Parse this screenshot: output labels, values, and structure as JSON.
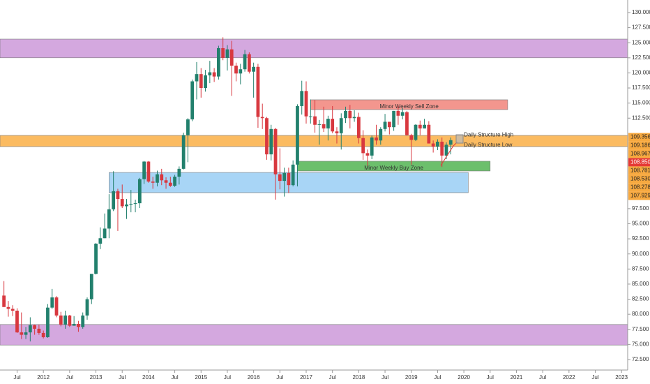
{
  "chart_data": {
    "type": "candlestick",
    "start_index": 0,
    "open": [
      83.1,
      81.2,
      80.9,
      80.6,
      77.0,
      76.6,
      77.0,
      78.2,
      77.6,
      76.9,
      76.2,
      81.1,
      82.8,
      79.8,
      78.3,
      79.8,
      78.1,
      78.4,
      77.9,
      79.8,
      82.5,
      86.7,
      91.7,
      92.6,
      94.2,
      97.4,
      100.4,
      99.1,
      97.9,
      98.2,
      98.3,
      98.4,
      102.4,
      105.3,
      102.0,
      101.8,
      103.2,
      102.2,
      101.8,
      101.3,
      102.8,
      104.1,
      109.7,
      112.3,
      118.6,
      119.8,
      117.5,
      119.6,
      120.1,
      119.4,
      124.1,
      122.5,
      123.9,
      121.2,
      119.9,
      120.6,
      123.1,
      120.2,
      121.0,
      112.7,
      112.5,
      106.5,
      110.7,
      103.2,
      102.1,
      103.4,
      101.4,
      104.8,
      114.5,
      117.0,
      112.8,
      112.8,
      111.4,
      111.5,
      110.8,
      112.4,
      110.3,
      110.0,
      112.5,
      113.7,
      112.5,
      112.7,
      109.2,
      106.7,
      106.3,
      109.3,
      108.8,
      110.7,
      111.9,
      111.0,
      113.7,
      112.9,
      113.5,
      109.7,
      108.9,
      111.4,
      110.8,
      111.4,
      108.3,
      107.8,
      108.6,
      106.3,
      108.1
    ],
    "high": [
      85.5,
      82.2,
      81.5,
      81.0,
      80.3,
      77.9,
      79.5,
      78.3,
      78.3,
      77.3,
      81.7,
      84.2,
      83.0,
      80.4,
      80.6,
      79.9,
      79.7,
      78.9,
      80.3,
      82.8,
      86.6,
      91.8,
      94.4,
      96.7,
      99.9,
      103.7,
      100.8,
      101.5,
      99.1,
      100.6,
      99.0,
      102.6,
      105.4,
      105.4,
      102.8,
      103.8,
      104.1,
      102.7,
      102.8,
      103.1,
      104.5,
      110.1,
      112.5,
      118.9,
      121.8,
      120.8,
      120.5,
      122.0,
      120.8,
      124.5,
      125.9,
      124.6,
      125.3,
      121.7,
      121.5,
      123.8,
      123.4,
      121.7,
      121.5,
      114.9,
      112.7,
      111.4,
      110.9,
      107.5,
      104.3,
      104.3,
      105.5,
      114.8,
      118.7,
      118.6,
      115.6,
      115.5,
      112.2,
      114.4,
      112.9,
      114.5,
      111.0,
      113.3,
      114.4,
      114.7,
      113.8,
      113.4,
      110.5,
      107.3,
      109.6,
      111.4,
      111.0,
      113.2,
      111.8,
      113.7,
      114.6,
      114.2,
      113.7,
      109.9,
      111.5,
      112.1,
      112.4,
      112.0,
      108.8,
      109.0,
      109.3,
      108.5,
      109.3
    ],
    "low": [
      81.3,
      79.6,
      79.7,
      76.9,
      75.9,
      75.9,
      75.5,
      76.6,
      76.6,
      76.0,
      76.1,
      80.9,
      79.5,
      78.0,
      77.6,
      77.9,
      78.1,
      77.1,
      77.6,
      79.1,
      81.7,
      86.6,
      90.8,
      92.6,
      92.6,
      97.1,
      93.8,
      97.6,
      95.8,
      96.9,
      96.9,
      97.6,
      101.6,
      101.8,
      100.8,
      101.2,
      101.4,
      100.8,
      101.1,
      101.1,
      101.5,
      104.0,
      105.2,
      112.0,
      115.6,
      115.9,
      116.9,
      118.3,
      118.5,
      118.9,
      122.1,
      120.4,
      116.2,
      118.6,
      118.1,
      120.2,
      119.9,
      115.9,
      110.9,
      110.7,
      105.6,
      105.5,
      99.0,
      100.7,
      99.5,
      100.1,
      101.2,
      101.2,
      113.1,
      111.6,
      111.6,
      110.1,
      108.1,
      110.2,
      108.8,
      110.0,
      108.3,
      107.3,
      111.7,
      110.8,
      111.9,
      108.3,
      105.6,
      104.6,
      105.7,
      108.1,
      108.1,
      110.3,
      109.8,
      110.4,
      111.4,
      112.3,
      109.6,
      104.8,
      108.7,
      109.7,
      110.8,
      108.3,
      106.8,
      107.2,
      104.4,
      105.7,
      106.5
    ],
    "close": [
      81.2,
      80.9,
      80.6,
      77.0,
      76.6,
      77.0,
      78.2,
      77.6,
      76.9,
      76.2,
      81.1,
      82.8,
      79.8,
      78.3,
      79.8,
      78.1,
      78.4,
      77.9,
      79.8,
      82.5,
      86.7,
      91.7,
      92.6,
      94.2,
      97.4,
      100.4,
      99.1,
      97.9,
      98.2,
      98.3,
      98.4,
      102.4,
      105.3,
      102.0,
      101.8,
      103.2,
      102.2,
      101.8,
      101.3,
      102.8,
      104.1,
      109.7,
      112.3,
      118.6,
      119.8,
      117.5,
      119.6,
      120.1,
      119.4,
      124.1,
      122.5,
      123.9,
      121.2,
      119.9,
      120.6,
      123.1,
      120.2,
      121.0,
      112.7,
      112.5,
      106.5,
      110.7,
      103.2,
      102.1,
      103.4,
      101.4,
      104.8,
      114.5,
      117.0,
      112.8,
      112.8,
      111.4,
      111.5,
      110.8,
      112.4,
      110.3,
      110.0,
      112.5,
      113.7,
      112.5,
      112.7,
      109.2,
      106.7,
      106.3,
      109.3,
      108.8,
      110.7,
      111.9,
      111.0,
      113.7,
      112.9,
      113.5,
      109.7,
      108.9,
      111.4,
      110.8,
      111.4,
      108.3,
      107.8,
      108.6,
      106.3,
      108.1,
      108.85
    ],
    "up_color": "#22806d",
    "down_color": "#d8383f",
    "xlim": [
      -0.9,
      142.4
    ],
    "ylim": [
      70.76,
      132.08
    ],
    "xticks": [
      {
        "value": 3,
        "label": "Jul"
      },
      {
        "value": 9,
        "label": "2012"
      },
      {
        "value": 15,
        "label": "Jul"
      },
      {
        "value": 21,
        "label": "2013"
      },
      {
        "value": 27,
        "label": "Jul"
      },
      {
        "value": 33,
        "label": "2014"
      },
      {
        "value": 39,
        "label": "Jul"
      },
      {
        "value": 45,
        "label": "2015"
      },
      {
        "value": 51,
        "label": "Jul"
      },
      {
        "value": 57,
        "label": "2016"
      },
      {
        "value": 63,
        "label": "Jul"
      },
      {
        "value": 69,
        "label": "2017"
      },
      {
        "value": 75,
        "label": "Jul"
      },
      {
        "value": 81,
        "label": "2018"
      },
      {
        "value": 87,
        "label": "Jul"
      },
      {
        "value": 93,
        "label": "2019"
      },
      {
        "value": 99,
        "label": "Jul"
      },
      {
        "value": 105,
        "label": "2020"
      },
      {
        "value": 111,
        "label": "Jul"
      },
      {
        "value": 117,
        "label": "2021"
      },
      {
        "value": 123,
        "label": "Jul"
      },
      {
        "value": 129,
        "label": "2022"
      },
      {
        "value": 135,
        "label": "Jul"
      },
      {
        "value": 141,
        "label": "2023"
      }
    ],
    "yticks": [
      {
        "value": 130,
        "label": "130.000"
      },
      {
        "value": 127.5,
        "label": "127.500"
      },
      {
        "value": 125,
        "label": "125.000"
      },
      {
        "value": 122.5,
        "label": "122.500"
      },
      {
        "value": 120,
        "label": "120.000"
      },
      {
        "value": 117.5,
        "label": "117.500"
      },
      {
        "value": 115,
        "label": "115.000"
      },
      {
        "value": 112.5,
        "label": "112.500"
      },
      {
        "value": 97.5,
        "label": "97.500"
      },
      {
        "value": 95,
        "label": "95.000"
      },
      {
        "value": 92.5,
        "label": "92.500"
      },
      {
        "value": 90,
        "label": "90.000"
      },
      {
        "value": 87.5,
        "label": "87.500"
      },
      {
        "value": 85,
        "label": "85.000"
      },
      {
        "value": 82.5,
        "label": "82.500"
      },
      {
        "value": 80,
        "label": "80.000"
      },
      {
        "value": 77.5,
        "label": "77.500"
      },
      {
        "value": 75,
        "label": "75.000"
      },
      {
        "value": 72.5,
        "label": "72.500"
      }
    ],
    "grid": false,
    "zones": [
      {
        "top": 125.6,
        "bottom": 122.5,
        "start": -0.9,
        "end": 142.4,
        "color": "#cf9fdc"
      },
      {
        "top": 78.3,
        "bottom": 74.9,
        "start": -0.9,
        "end": 142.4,
        "color": "#cf9fdc"
      },
      {
        "label": "Minor Weekly Sell Zone",
        "top": 115.54,
        "bottom": 113.92,
        "start": 70,
        "end": 115,
        "color": "#f28b82"
      },
      {
        "top": 109.64,
        "bottom": 107.79,
        "start": -0.9,
        "end": 142.4,
        "color": "#fbb450"
      },
      {
        "label": "Minor Weekly Buy Zone",
        "top": 105.36,
        "bottom": 103.74,
        "start": 67,
        "end": 111,
        "color": "#5cb85c"
      },
      {
        "top": 103.5,
        "bottom": 100.15,
        "start": 24,
        "end": 106,
        "color": "#9fd0f5"
      }
    ],
    "annotations": [
      {
        "text": "Daily Structure High",
        "x": 105,
        "y": 109.7
      },
      {
        "text": "Daily Structure Low",
        "x": 105,
        "y": 108.05
      }
    ],
    "price_labels": [
      {
        "value": 109.356,
        "label": "109.356",
        "color": "#f7a940"
      },
      {
        "value": 109.186,
        "label": "109.186",
        "color": "#f7a940"
      },
      {
        "value": 108.967,
        "label": "108.967",
        "color": "#f7a940"
      },
      {
        "value": 108.85,
        "label": "108.850",
        "color": "#e53935"
      },
      {
        "value": 108.781,
        "label": "108.781",
        "color": "#f7a940"
      },
      {
        "value": 108.53,
        "label": "108.530",
        "color": "#f7a940"
      },
      {
        "value": 108.278,
        "label": "108.278",
        "color": "#f7a940"
      },
      {
        "value": 107.929,
        "label": "107.929",
        "color": "#f7a940"
      }
    ]
  }
}
